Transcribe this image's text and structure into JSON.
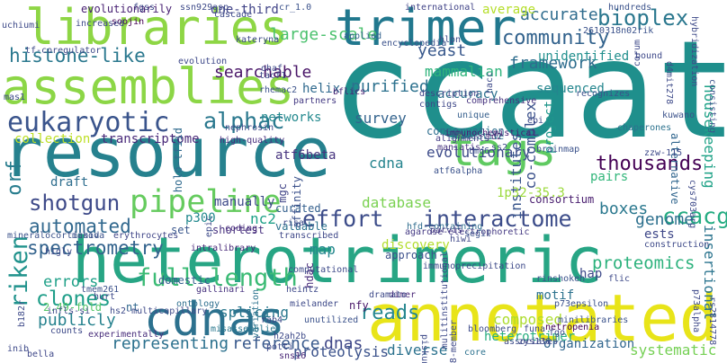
{
  "words": [
    {
      "text": "heterotrimeric",
      "color": "#27a584"
    },
    {
      "text": "ccaat",
      "color": "#1f8f8c"
    },
    {
      "text": "resource",
      "color": "#26818e"
    },
    {
      "text": "annotated",
      "color": "#e8e419"
    },
    {
      "text": "assemblies",
      "color": "#8cd646"
    },
    {
      "text": "libraries",
      "color": "#8ed645"
    },
    {
      "text": "trimer",
      "color": "#21788e"
    },
    {
      "text": "cdnas",
      "color": "#2c718e"
    },
    {
      "text": "tags",
      "color": "#5fca61"
    },
    {
      "text": "eukaryotic",
      "color": "#3a548c"
    },
    {
      "text": "interactome",
      "color": "#3d4d8a"
    },
    {
      "text": "pipeline",
      "color": "#65cb5e"
    },
    {
      "text": "full-length",
      "color": "#3bbb75"
    },
    {
      "text": "histone-like",
      "color": "#2a788e"
    },
    {
      "text": "community",
      "color": "#33638d"
    },
    {
      "text": "bioplex",
      "color": "#2a778e"
    },
    {
      "text": "riken",
      "color": "#20928c"
    },
    {
      "text": "alphac",
      "color": "#2a788e"
    },
    {
      "text": "thousands",
      "color": "#440154"
    },
    {
      "text": "shotgun",
      "color": "#3e4a89"
    },
    {
      "text": "effort",
      "color": "#3d4d8a"
    },
    {
      "text": "automated",
      "color": "#31688e"
    },
    {
      "text": "spectrometry",
      "color": "#33638d"
    },
    {
      "text": "reads",
      "color": "#24868e"
    },
    {
      "text": "orf",
      "color": "#287d8e"
    },
    {
      "text": "ccacg",
      "color": "#25ac82"
    },
    {
      "text": "clones",
      "color": "#1f9e89"
    },
    {
      "text": "errors",
      "color": "#1fa088"
    },
    {
      "text": "proteomics",
      "color": "#2db27d"
    },
    {
      "text": "framework",
      "color": "#2e6d8e"
    },
    {
      "text": "genome",
      "color": "#2d708e"
    },
    {
      "text": "boxes",
      "color": "#2a788e"
    },
    {
      "text": "searchable",
      "color": "#481467"
    },
    {
      "text": "accurate",
      "color": "#2f6c8e"
    },
    {
      "text": "large-scale",
      "color": "#4ac16d"
    },
    {
      "text": "purified",
      "color": "#2c718e"
    },
    {
      "text": "yeast",
      "color": "#38588c"
    },
    {
      "text": "mammalian",
      "color": "#2fb47c"
    },
    {
      "text": "sequenced",
      "color": "#24868e"
    },
    {
      "text": "publicly",
      "color": "#26828e"
    },
    {
      "text": "representing",
      "color": "#2c718e"
    },
    {
      "text": "reference",
      "color": "#38598c"
    },
    {
      "text": "dnas",
      "color": "#3f4788"
    },
    {
      "text": "proteolysis",
      "color": "#3b528b"
    },
    {
      "text": "diverse",
      "color": "#2c728e"
    },
    {
      "text": "heterotrimer",
      "color": "#28ae80"
    },
    {
      "text": "organization",
      "color": "#31668e"
    },
    {
      "text": "systematic",
      "color": "#75d054"
    },
    {
      "text": "composed",
      "color": "#addc30"
    },
    {
      "text": "splicing",
      "color": "#2a788e"
    },
    {
      "text": "map",
      "color": "#24868e"
    },
    {
      "text": "database",
      "color": "#7ad151"
    },
    {
      "text": "cdna",
      "color": "#25848e"
    },
    {
      "text": "evolutionary",
      "color": "#3e4c8a"
    },
    {
      "text": "survey",
      "color": "#33638d"
    },
    {
      "text": "accuracy",
      "color": "#2c728e"
    },
    {
      "text": "networks",
      "color": "#23898e"
    },
    {
      "text": "transcriptome",
      "color": "#482979"
    },
    {
      "text": "collection",
      "color": "#bddf26"
    },
    {
      "text": "helix",
      "color": "#306a8e"
    },
    {
      "text": "motif",
      "color": "#2c728e"
    },
    {
      "text": "ests",
      "color": "#3f4889"
    },
    {
      "text": "pairs",
      "color": "#32b67a"
    },
    {
      "text": "hap",
      "color": "#3e4989"
    },
    {
      "text": "insertional",
      "color": "#2b748e"
    },
    {
      "text": "housekeeping",
      "color": "#1fa287"
    },
    {
      "text": "institutes",
      "color": "#39568c"
    },
    {
      "text": "co-complex",
      "color": "#3b518b"
    },
    {
      "text": "project",
      "color": "#1f968b"
    },
    {
      "text": "unidentified",
      "color": "#218f8d"
    },
    {
      "text": "average",
      "color": "#b5de2b"
    },
    {
      "text": "one-third",
      "color": "#404387"
    },
    {
      "text": "evolutionarily",
      "color": "#482173"
    },
    {
      "text": "atf6beta",
      "color": "#46337e"
    },
    {
      "text": "p300",
      "color": "#23898e"
    },
    {
      "text": "nc2",
      "color": "#1fa188"
    },
    {
      "text": "curated",
      "color": "#34608d"
    },
    {
      "text": "manually",
      "color": "#3e4a89"
    },
    {
      "text": "draft",
      "color": "#2e6e8e"
    },
    {
      "text": "consortium",
      "color": "#481c6e"
    },
    {
      "text": "1p32-35.3",
      "color": "#9bd93c"
    },
    {
      "text": "discovery",
      "color": "#b2dd2d"
    },
    {
      "text": "approach",
      "color": "#3c508b"
    },
    {
      "text": "conservation",
      "color": "#2e6e8e"
    },
    {
      "text": "comprehensive",
      "color": "#46337e"
    },
    {
      "text": "unique",
      "color": "#355f8d"
    },
    {
      "text": "alternative",
      "color": "#31668e"
    },
    {
      "text": "holo-tfiid",
      "color": "#306a8e"
    },
    {
      "text": "affinity",
      "color": "#3b518b"
    },
    {
      "text": "mgc",
      "color": "#404387"
    },
    {
      "text": "domestic",
      "color": "#355f8d"
    },
    {
      "text": "hdac",
      "color": "#472a7a"
    },
    {
      "text": "nfy",
      "color": "#481668"
    },
    {
      "text": "nt",
      "color": "#31688e"
    },
    {
      "text": "2.49-fold",
      "color": "#55c667"
    },
    {
      "text": "valuable",
      "color": "#2c728e"
    },
    {
      "text": "set",
      "color": "#39568c"
    },
    {
      "text": "dimer",
      "color": "#482576"
    },
    {
      "text": "id2",
      "color": "#481f70"
    },
    {
      "text": "ontology",
      "color": "#2e6f8e"
    },
    {
      "text": "variation",
      "color": "#2c738e"
    },
    {
      "text": "unutilized",
      "color": "#3b528b"
    },
    {
      "text": "misassemblies",
      "color": "#2a788e"
    },
    {
      "text": "experimentally",
      "color": "#472c7a"
    },
    {
      "text": "description",
      "color": "#414487"
    },
    {
      "text": "initiative",
      "color": "#2a778e"
    },
    {
      "text": "contigs",
      "color": "#3f4889"
    },
    {
      "text": "recognizes",
      "color": "#3b528b"
    },
    {
      "text": "high-quality",
      "color": "#472f7d"
    },
    {
      "text": "rhemac2",
      "color": "#3b528b"
    },
    {
      "text": "bflics",
      "color": "#482475"
    },
    {
      "text": "partners",
      "color": "#443a83"
    },
    {
      "text": "applied",
      "color": "#33638d"
    },
    {
      "text": "encyclopedia",
      "color": "#3b528b"
    },
    {
      "text": "hlpn",
      "color": "#3e4c8a"
    },
    {
      "text": "soojin",
      "color": "#440154"
    },
    {
      "text": "tf-coregulator",
      "color": "#3e4a89"
    },
    {
      "text": "mineralocorticoid",
      "color": "#3b528b"
    },
    {
      "text": "makova",
      "color": "#3b528b"
    },
    {
      "text": "erythrocytes",
      "color": "#404688"
    },
    {
      "text": "shortest",
      "color": "#46307e"
    },
    {
      "text": "transcribed",
      "color": "#3f4889"
    },
    {
      "text": "intralibrary",
      "color": "#482979"
    },
    {
      "text": "coding",
      "color": "#472a7a"
    },
    {
      "text": "agarose-electrophoretic",
      "color": "#443983"
    },
    {
      "text": "risa",
      "color": "#3e4a89"
    },
    {
      "text": "brainmap",
      "color": "#3b528b"
    },
    {
      "text": "chaperones",
      "color": "#2c728e"
    },
    {
      "text": "atf6alpha",
      "color": "#3b528b"
    },
    {
      "text": "immunochemistical",
      "color": "#482173"
    },
    {
      "text": "alignments",
      "color": "#433e85"
    },
    {
      "text": "maniatis",
      "color": "#46327e"
    },
    {
      "text": "heintz",
      "color": "#3e4989"
    },
    {
      "text": "gallinari",
      "color": "#46327e"
    },
    {
      "text": "tmem261",
      "color": "#3b518b"
    },
    {
      "text": "hfd-containing",
      "color": "#2f6c8e"
    },
    {
      "text": "parvis",
      "color": "#443a83"
    },
    {
      "text": "hiwi",
      "color": "#3f4889"
    },
    {
      "text": "segil",
      "color": "#3b528b"
    },
    {
      "text": "p73alpha",
      "color": "#3e4989"
    },
    {
      "text": "rinshoken",
      "color": "#3b528b"
    },
    {
      "text": "flic",
      "color": "#3e4a89"
    },
    {
      "text": "p73epsilon",
      "color": "#3b518b"
    },
    {
      "text": "minilibraries",
      "color": "#3b528b"
    },
    {
      "text": "netropenia",
      "color": "#440154"
    },
    {
      "text": "fgo",
      "color": "#3e4a89"
    },
    {
      "text": "funa",
      "color": "#3e4989"
    },
    {
      "text": "associates",
      "color": "#3e4a89"
    },
    {
      "text": "core",
      "color": "#2c718e"
    },
    {
      "text": "28-member",
      "color": "#3e4989"
    },
    {
      "text": "sns16",
      "color": "#482576"
    },
    {
      "text": "bella",
      "color": "#3f4889"
    },
    {
      "text": "bloomberg",
      "color": "#3e4c8a"
    },
    {
      "text": "tmc6",
      "color": "#3b528b"
    },
    {
      "text": "construction",
      "color": "#3e4a89"
    },
    {
      "text": "consisting",
      "color": "#3b528b"
    },
    {
      "text": "kuwano",
      "color": "#3b528b"
    },
    {
      "text": "bound",
      "color": "#3e4989"
    },
    {
      "text": "corum",
      "color": "#3e4989"
    },
    {
      "text": "hundreds",
      "color": "#3b528b"
    },
    {
      "text": "international",
      "color": "#404387"
    },
    {
      "text": "evolution",
      "color": "#3e4989"
    },
    {
      "text": "ssn929asp",
      "color": "#3e4a89"
    },
    {
      "text": "cr_1.0",
      "color": "#3b528b"
    },
    {
      "text": "uchiumi",
      "color": "#3e4a89"
    },
    {
      "text": "hybridization",
      "color": "#3e4a89"
    },
    {
      "text": "cys703arg",
      "color": "#3e4a89"
    },
    {
      "text": "d4mit278",
      "color": "#3e4a89"
    },
    {
      "text": "zzw-115",
      "color": "#3e4a89"
    },
    {
      "text": "2610318n02rik",
      "color": "#3b528b"
    },
    {
      "text": "hacc",
      "color": "#3e4a89"
    },
    {
      "text": "kateryna",
      "color": "#3e4a89"
    },
    {
      "text": "ebi",
      "color": "#3e4a89"
    },
    {
      "text": "rab4",
      "color": "#3e4a89"
    },
    {
      "text": "ohaf",
      "color": "#3e4a89"
    },
    {
      "text": "tacf1",
      "color": "#3e4a89"
    },
    {
      "text": "inib",
      "color": "#3e4a89"
    },
    {
      "text": "h2ah2b",
      "color": "#3e4a89"
    },
    {
      "text": "higly",
      "color": "#3e4a89"
    },
    {
      "text": "nephrosin",
      "color": "#3e4a89"
    },
    {
      "text": "piskun",
      "color": "#3e4a89"
    },
    {
      "text": "rs2814778",
      "color": "#3e4a89"
    },
    {
      "text": "zys136",
      "color": "#3e4a89"
    },
    {
      "text": "mas1",
      "color": "#3e4a89"
    },
    {
      "text": "mielander",
      "color": "#3e4a89"
    },
    {
      "text": "hurt",
      "color": "#3e4a89"
    },
    {
      "text": "dramato",
      "color": "#3e4a89"
    },
    {
      "text": "mulitinstitutional",
      "color": "#3e4a89"
    },
    {
      "text": "hs2-multicapillary",
      "color": "#3e4a89"
    },
    {
      "text": "b182r",
      "color": "#3e4a89"
    },
    {
      "text": "infls-si",
      "color": "#3e4a89"
    },
    {
      "text": "counts",
      "color": "#3e4a89"
    },
    {
      "text": "potti",
      "color": "#3e4a89"
    },
    {
      "text": "ss2",
      "color": "#3e4a89"
    },
    {
      "text": "epic",
      "color": "#3e4a89"
    },
    {
      "text": "immunoprecipitation",
      "color": "#3e4a89"
    },
    {
      "text": "computational",
      "color": "#3e4a89"
    },
    {
      "text": "fgss",
      "color": "#3e4a89"
    },
    {
      "text": "cascade",
      "color": "#3e4a89"
    },
    {
      "text": "increased",
      "color": "#3e4a89"
    },
    {
      "text": "ast",
      "color": "#3e4a89"
    }
  ]
}
